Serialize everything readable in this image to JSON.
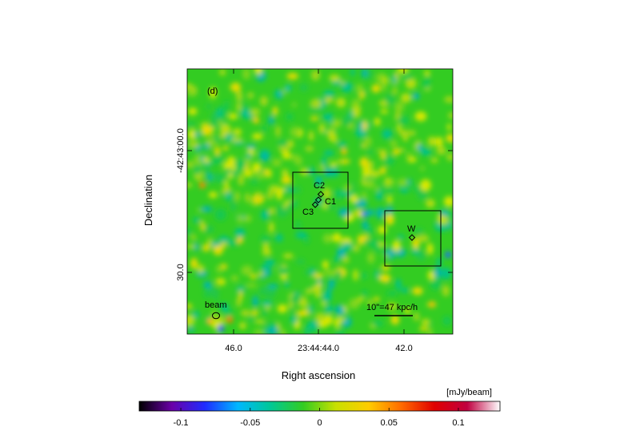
{
  "panel_label": "(d)",
  "axes": {
    "xlabel": "Right ascension",
    "ylabel": "Declination",
    "x_ticks": [
      "46.0",
      "23:44:44.0",
      "42.0"
    ],
    "y_ticks": [
      "-42:43:00.0",
      "30.0"
    ]
  },
  "sources": {
    "c1": "C1",
    "c2": "C2",
    "c3": "C3",
    "w": "W"
  },
  "beam_label": "beam",
  "scalebar_label": "10\"=47 kpc/h",
  "colorbar": {
    "unit": "[mJy/beam]",
    "ticks": [
      "-0.1",
      "-0.05",
      "0",
      "0.05",
      "0.1"
    ],
    "tick_values": [
      -0.1,
      -0.05,
      0,
      0.05,
      0.1
    ],
    "range": [
      -0.13,
      0.13
    ]
  },
  "colors": {
    "map_base": "#33cc22",
    "colorbar_stops": [
      "#000000",
      "#6a00a8",
      "#1f2cff",
      "#00b7ff",
      "#00c896",
      "#33cc22",
      "#c8e000",
      "#ffcc00",
      "#ff6a00",
      "#e00000",
      "#c00040",
      "#ffffff"
    ]
  }
}
